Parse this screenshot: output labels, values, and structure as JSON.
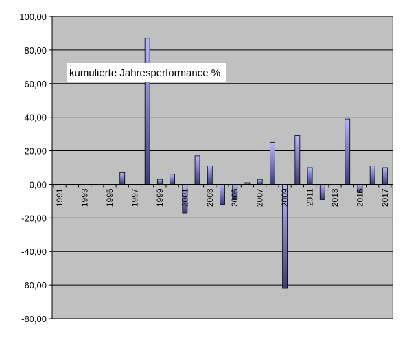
{
  "chart_data": {
    "type": "bar",
    "title": "",
    "xlabel": "",
    "ylabel": "",
    "annotation": "kumulierte Jahresperformance %",
    "x": [
      1991,
      1992,
      1993,
      1994,
      1995,
      1996,
      1997,
      1998,
      1999,
      2000,
      2001,
      2002,
      2003,
      2004,
      2005,
      2006,
      2007,
      2008,
      2009,
      2010,
      2011,
      2012,
      2013,
      2014,
      2015,
      2016,
      2017
    ],
    "x_tick_labels": [
      "1991",
      "1993",
      "1995",
      "1997",
      "1999",
      "2001",
      "2003",
      "2005",
      "2007",
      "2009",
      "2011",
      "2013",
      "2015",
      "2017"
    ],
    "values": [
      0,
      0,
      0,
      0,
      0,
      7,
      0,
      87,
      3,
      6,
      -17,
      17,
      11,
      -12,
      -9,
      1,
      3,
      25,
      -62,
      29,
      10,
      -9,
      0,
      39,
      -5,
      11,
      10
    ],
    "ylim": [
      -80,
      100
    ],
    "y_ticks": [
      100,
      80,
      60,
      40,
      20,
      0,
      -20,
      -40,
      -60,
      -80
    ],
    "y_tick_labels": [
      "100,00",
      "80,00",
      "60,00",
      "40,00",
      "20,00",
      "0,00",
      "-20,00",
      "-40,00",
      "-60,00",
      "-80,00"
    ],
    "grid": true,
    "legend": "none",
    "colors": {
      "plot_background": "#c0c0c0",
      "bar_light": "#b3b3ff",
      "bar_dark": "#3b3b78",
      "gridline": "#000000"
    }
  }
}
